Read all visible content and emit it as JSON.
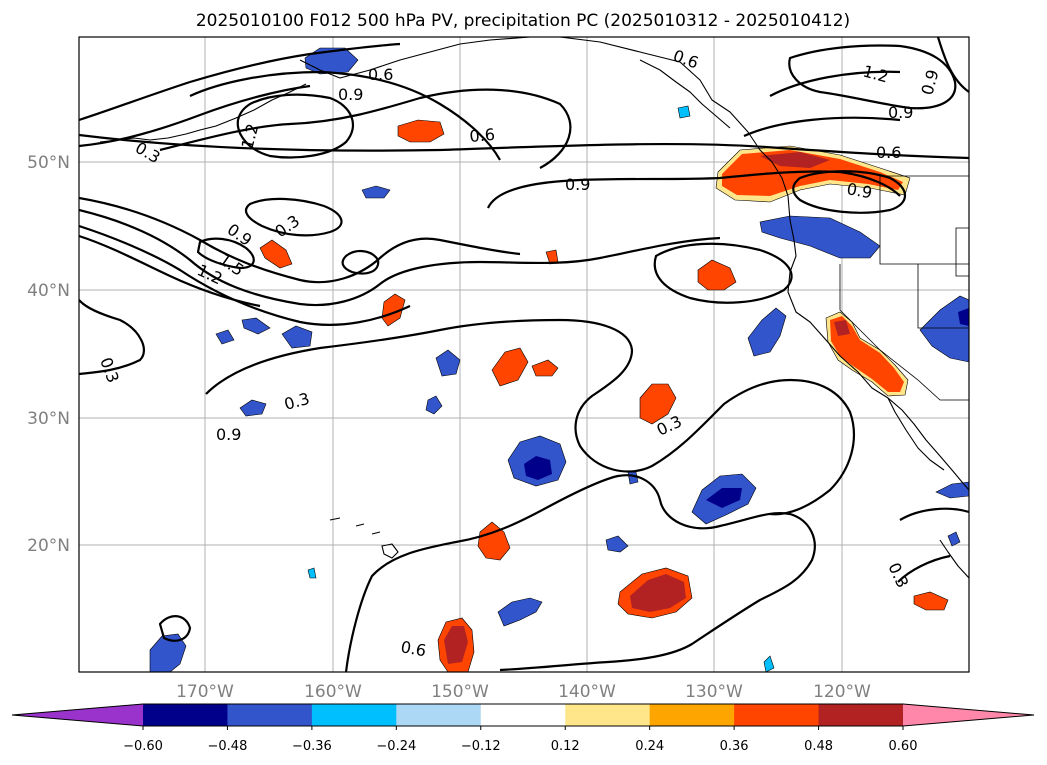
{
  "title": "2025010100 F012 500 hPa PV, precipitation PC (2025010312 - 2025010412)",
  "lat_labels": [
    "50°N",
    "40°N",
    "30°N",
    "20°N"
  ],
  "lon_labels": [
    "170°W",
    "160°W",
    "150°W",
    "140°W",
    "130°W",
    "120°W"
  ],
  "colorbar": {
    "ticks": [
      "−0.60",
      "−0.48",
      "−0.36",
      "−0.24",
      "−0.12",
      "0.12",
      "0.24",
      "0.36",
      "0.48",
      "0.60"
    ],
    "colors": [
      "#9933cc",
      "#00008b",
      "#3355cc",
      "#00bfff",
      "#add8f5",
      "#ffffff",
      "#ffe68a",
      "#ffa500",
      "#ff4500",
      "#b22222",
      "#ff88aa"
    ]
  },
  "contour_labels": [
    "0.3",
    "0.3",
    "0.3",
    "0.3",
    "0.3",
    "0.3",
    "0.6",
    "0.6",
    "0.6",
    "0.6",
    "0.6",
    "0.9",
    "0.9",
    "0.9",
    "0.9",
    "0.9",
    "0.9",
    "0.9",
    "1.2",
    "1.2",
    "1.2",
    "1.5"
  ]
}
